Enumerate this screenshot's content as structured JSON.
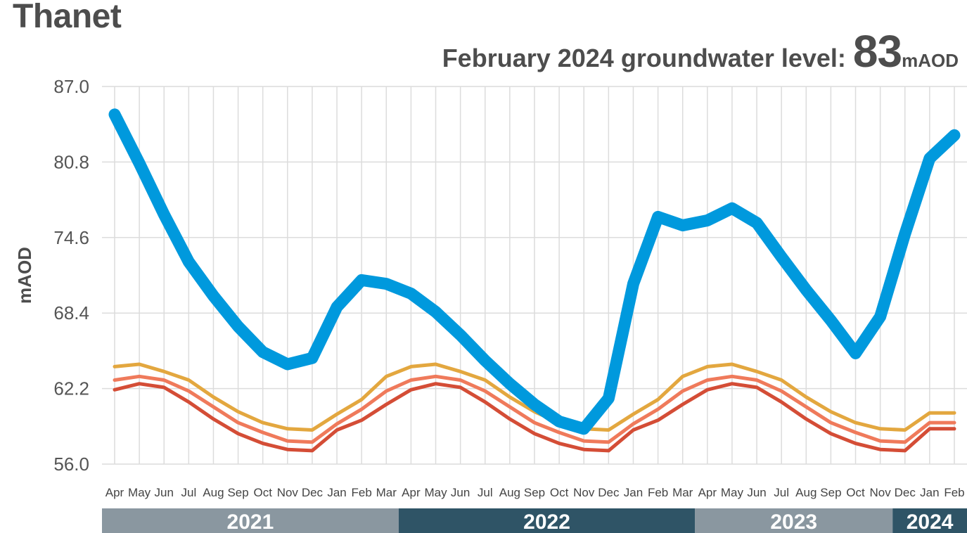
{
  "title": "Thanet",
  "headline": {
    "lead": "February 2024 groundwater level: ",
    "value": "83",
    "unit": "mAOD"
  },
  "chart_data": {
    "type": "line",
    "ylabel": "mAOD",
    "ylim": [
      56.0,
      87.0
    ],
    "yticks": [
      "87.0",
      "80.8",
      "74.6",
      "68.4",
      "62.2",
      "56.0"
    ],
    "grid": true,
    "categories": [
      "Apr",
      "May",
      "Jun",
      "Jul",
      "Aug",
      "Sep",
      "Oct",
      "Nov",
      "Dec",
      "Jan",
      "Feb",
      "Mar",
      "Apr",
      "May",
      "Jun",
      "Jul",
      "Aug",
      "Sep",
      "Oct",
      "Nov",
      "Dec",
      "Jan",
      "Feb",
      "Mar",
      "Apr",
      "May",
      "Jun",
      "Jul",
      "Aug",
      "Sep",
      "Oct",
      "Nov",
      "Dec",
      "Jan",
      "Feb"
    ],
    "years": [
      {
        "label": "2021",
        "start": 0,
        "end": 11,
        "color": "#8a97a0"
      },
      {
        "label": "2022",
        "start": 12,
        "end": 23,
        "color": "#2f5466"
      },
      {
        "label": "2023",
        "start": 24,
        "end": 31,
        "color": "#8a97a0"
      },
      {
        "label": "2024",
        "start": 32,
        "end": 34,
        "color": "#2f5466"
      }
    ],
    "series": [
      {
        "color": "#e3a73f",
        "width": 5,
        "values": [
          64.0,
          64.2,
          63.6,
          62.9,
          61.5,
          60.3,
          59.4,
          58.9,
          58.8,
          60.1,
          61.3,
          63.2,
          64.0,
          64.2,
          63.6,
          62.9,
          61.5,
          60.3,
          59.4,
          58.9,
          58.8,
          60.1,
          61.3,
          63.2,
          64.0,
          64.2,
          63.6,
          62.9,
          61.5,
          60.3,
          59.4,
          58.9,
          58.8,
          60.2,
          60.2
        ]
      },
      {
        "color": "#ef7a5b",
        "width": 5,
        "values": [
          62.9,
          63.2,
          62.9,
          62.0,
          60.7,
          59.4,
          58.6,
          57.9,
          57.8,
          59.3,
          60.5,
          62.0,
          62.9,
          63.2,
          62.9,
          62.0,
          60.7,
          59.4,
          58.6,
          57.9,
          57.8,
          59.3,
          60.5,
          62.0,
          62.9,
          63.2,
          62.9,
          62.0,
          60.7,
          59.4,
          58.6,
          57.9,
          57.8,
          59.4,
          59.4
        ]
      },
      {
        "color": "#d44d36",
        "width": 5,
        "values": [
          62.1,
          62.6,
          62.3,
          61.1,
          59.7,
          58.5,
          57.7,
          57.2,
          57.1,
          58.8,
          59.6,
          60.9,
          62.1,
          62.6,
          62.3,
          61.1,
          59.7,
          58.5,
          57.7,
          57.2,
          57.1,
          58.8,
          59.6,
          60.9,
          62.1,
          62.6,
          62.3,
          61.1,
          59.7,
          58.5,
          57.7,
          57.2,
          57.1,
          58.9,
          58.9
        ]
      },
      {
        "color": "#0099dd",
        "width": 17,
        "values": [
          84.7,
          80.7,
          76.5,
          72.6,
          69.8,
          67.3,
          65.2,
          64.2,
          64.7,
          68.9,
          71.1,
          70.8,
          70.0,
          68.5,
          66.6,
          64.5,
          62.6,
          60.9,
          59.5,
          58.9,
          61.4,
          70.8,
          76.3,
          75.6,
          76.0,
          77.0,
          75.8,
          73.0,
          70.3,
          67.8,
          65.1,
          68.1,
          74.9,
          81.1,
          83.0
        ]
      }
    ]
  }
}
